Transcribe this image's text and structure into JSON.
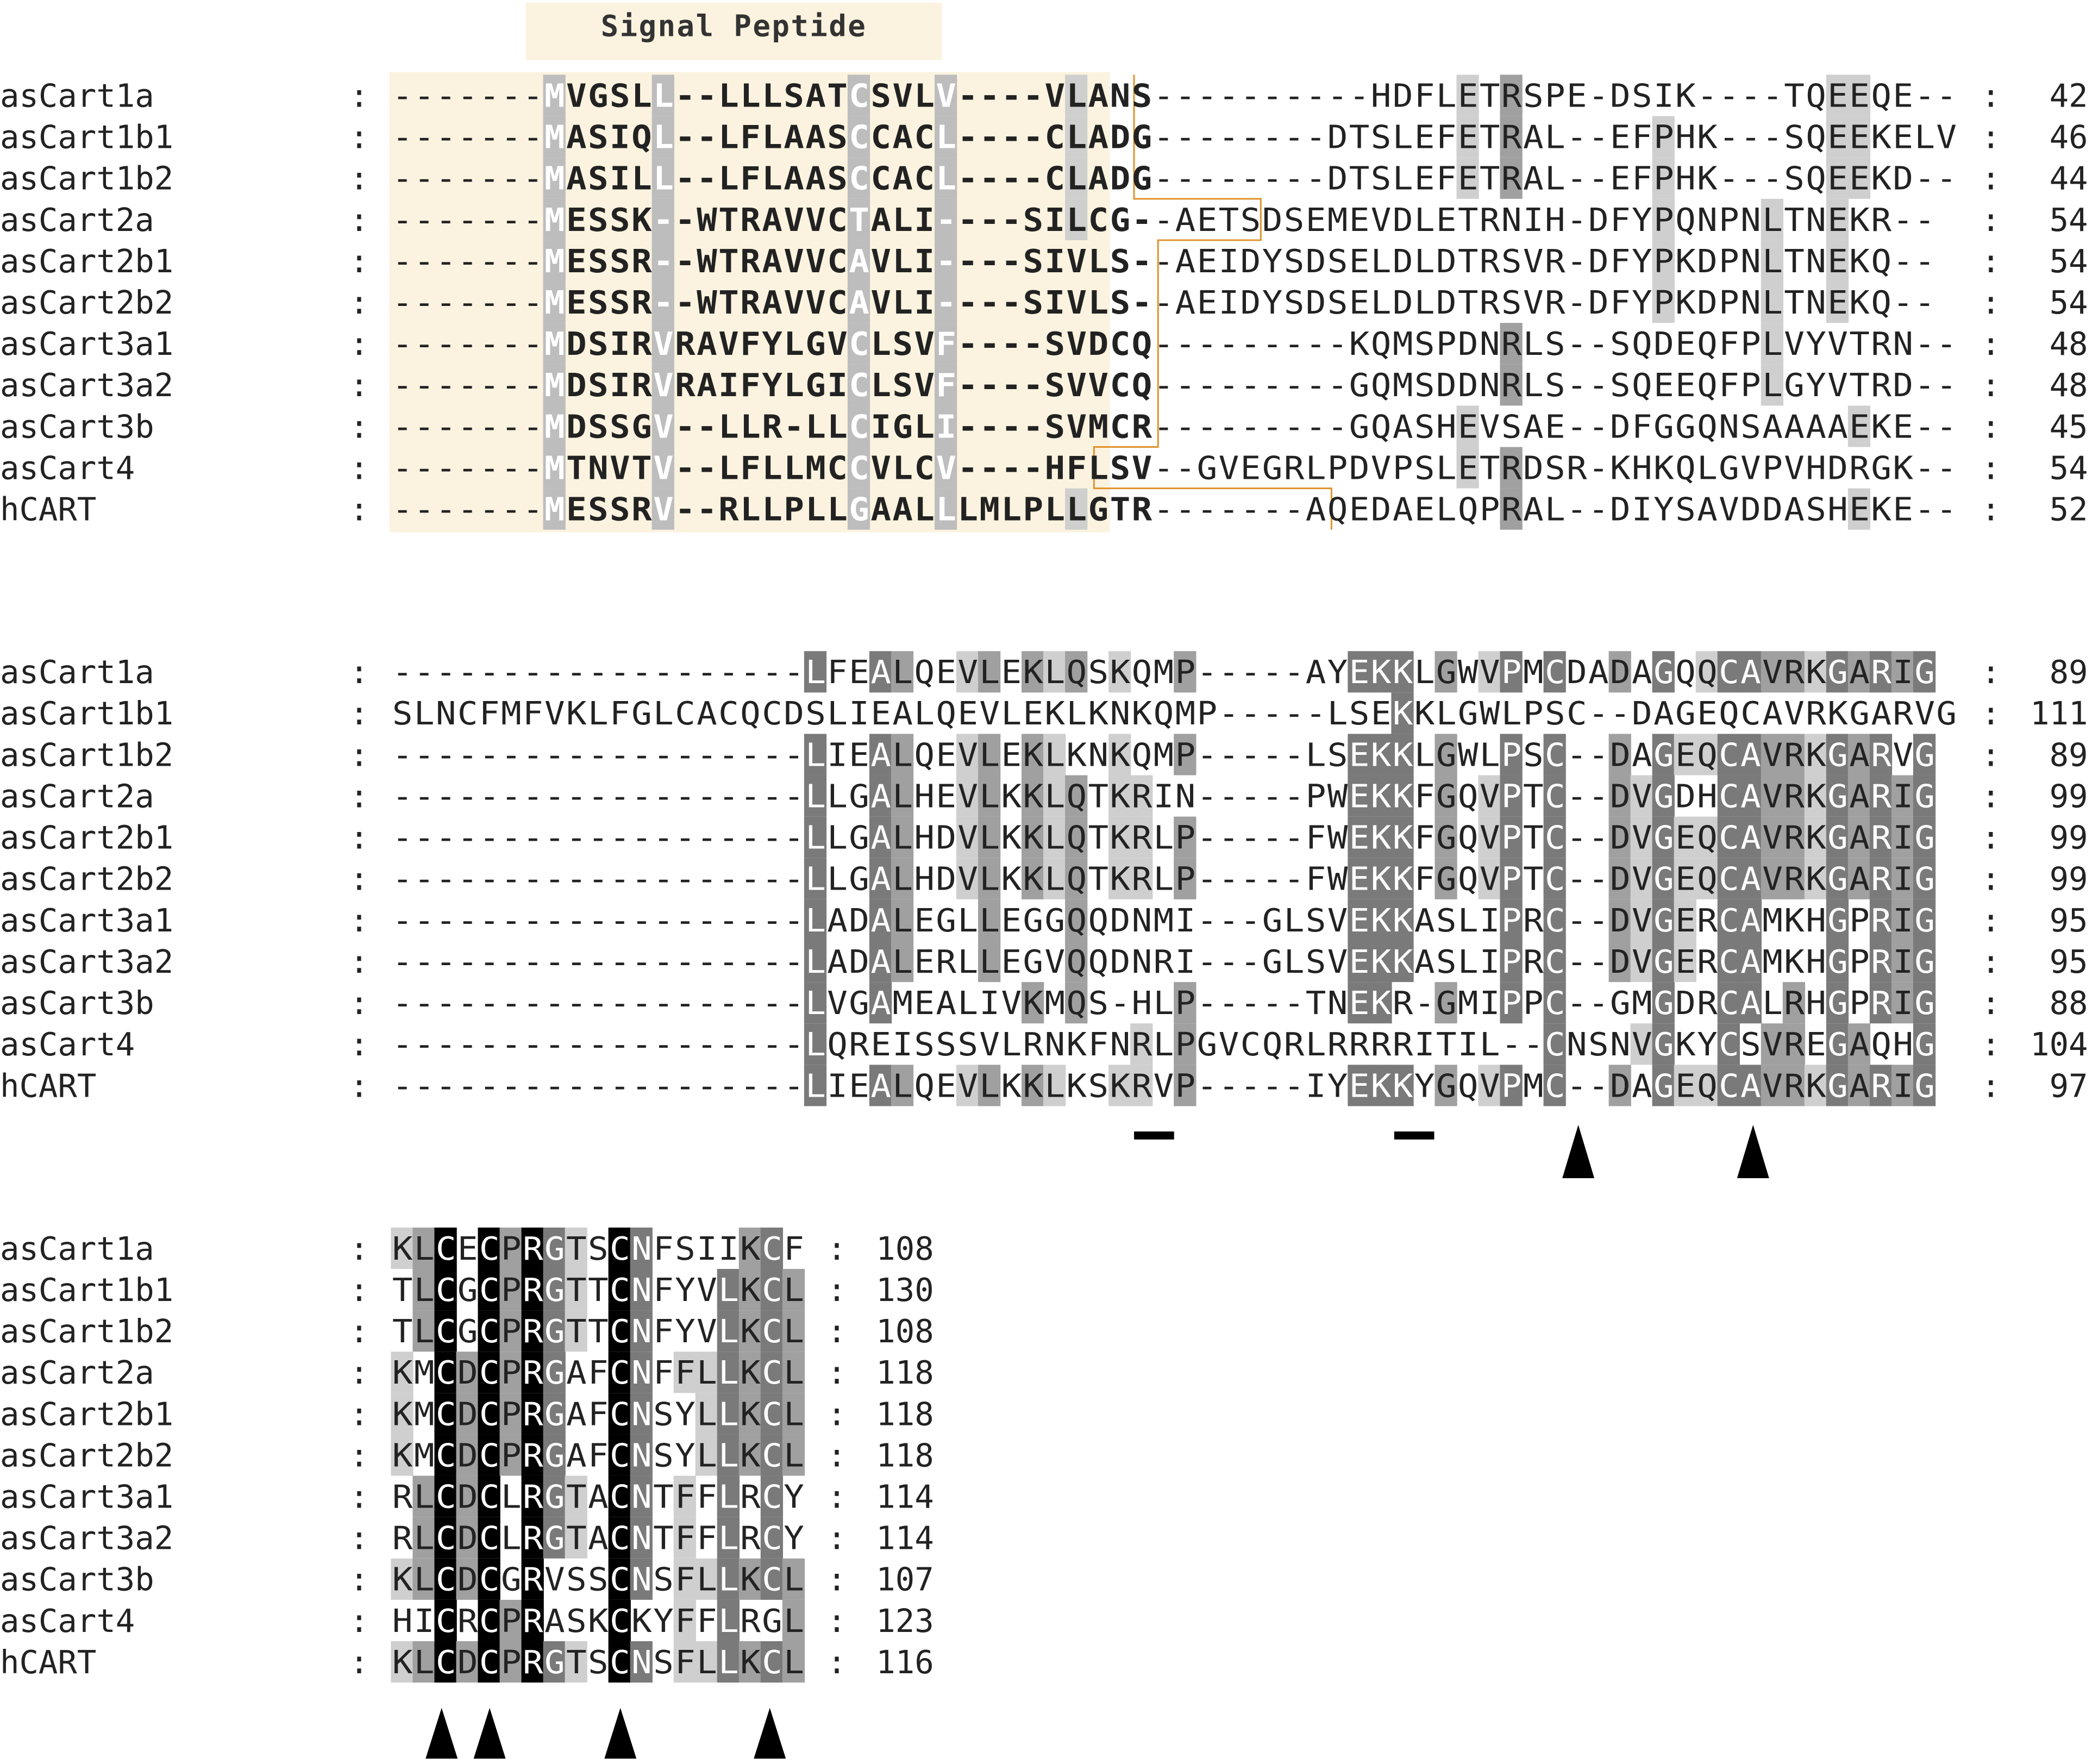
{
  "signal_peptide_label": "Signal Peptide",
  "colors": {
    "black": "#000000",
    "dark_gray": "#7a7a7a",
    "gray": "#a0a0a0",
    "light_gray": "#cfcfcf",
    "red": "#cc0000",
    "signal_shade": "#fbf3df",
    "boundary": "#e0912a"
  },
  "blocks": [
    {
      "rows": [
        {
          "name": "asCart1a",
          "seq": "-------MVGSLL--LLLSATCSVLV----VLANS----------HDFLETRSPE-DSIK----TQEEQE--",
          "end": "42",
          "bold": [
            7,
            26
          ],
          "signal": [
            0,
            29
          ],
          "red": [],
          "hl": [
            [
              7,
              "g"
            ],
            [
              12,
              "g"
            ],
            [
              21,
              "g"
            ],
            [
              25,
              "g"
            ],
            [
              29,
              "l"
            ],
            [
              33,
              "l"
            ],
            [
              45,
              "g"
            ],
            [
              46,
              "g"
            ],
            [
              47,
              "g"
            ]
          ]
        },
        {
          "name": "asCart1b1",
          "seq": "-------MASIQL--LFLAASCCACL----CLADG--------DTSLEFETRAL--EFPHK---SQEEKELV",
          "end": "46",
          "bold": [
            7,
            26
          ],
          "signal": [
            0,
            29
          ],
          "red": [],
          "hl": [
            [
              7,
              "g"
            ],
            [
              12,
              "g"
            ],
            [
              21,
              "g"
            ],
            [
              25,
              "g"
            ],
            [
              29,
              "l"
            ],
            [
              33,
              "l"
            ],
            [
              45,
              "g"
            ],
            [
              46,
              "g"
            ],
            [
              47,
              "g"
            ]
          ]
        },
        {
          "name": "asCart1b2",
          "seq": "-------MASILL--LFLAASCCACL----CLADG--------DTSLEFETRAL--EFPHK---SQEEKD--",
          "end": "44",
          "bold": [
            7,
            26
          ],
          "signal": [
            0,
            29
          ],
          "red": [],
          "hl": [
            [
              7,
              "g"
            ],
            [
              12,
              "g"
            ],
            [
              21,
              "g"
            ],
            [
              25,
              "g"
            ],
            [
              29,
              "l"
            ],
            [
              33,
              "l"
            ],
            [
              45,
              "g"
            ],
            [
              46,
              "g"
            ],
            [
              47,
              "g"
            ]
          ]
        },
        {
          "name": "asCart2a",
          "seq": "-------MESSK--WTRAVVCTALI----SILCG--AETSDSEMEVDLETRNIH-DFYPQNPNLTNEKR--",
          "end": "54",
          "bold": [
            7,
            26
          ],
          "signal": [
            0,
            29
          ],
          "red": [],
          "hl": [
            [
              7,
              "g"
            ],
            [
              12,
              "g"
            ],
            [
              21,
              "g"
            ],
            [
              25,
              "g"
            ],
            [
              29,
              "l"
            ],
            [
              33,
              "l"
            ],
            [
              45,
              "g"
            ],
            [
              46,
              "g"
            ],
            [
              47,
              "g"
            ]
          ]
        },
        {
          "name": "asCart2b1",
          "seq": "-------MESSR--WTRAVVCAVLI----SIVLS--AEIDYSDSELDLDTRSVR-DFYPKDPNLTNEKQ--",
          "end": "54",
          "bold": [
            7,
            26
          ],
          "signal": [
            0,
            29
          ],
          "red": [],
          "hl": [
            [
              7,
              "g"
            ],
            [
              12,
              "g"
            ],
            [
              21,
              "g"
            ],
            [
              25,
              "g"
            ],
            [
              29,
              "l"
            ],
            [
              33,
              "l"
            ],
            [
              45,
              "g"
            ],
            [
              46,
              "g"
            ],
            [
              47,
              "g"
            ]
          ]
        },
        {
          "name": "asCart2b2",
          "seq": "-------MESSR--WTRAVVCAVLI----SIVLS--AEIDYSDSELDLDTRSVR-DFYPKDPNLTNEKQ--",
          "end": "54",
          "bold": [
            7,
            26
          ],
          "signal": [
            0,
            29
          ],
          "red": [],
          "hl": [
            [
              7,
              "g"
            ],
            [
              12,
              "g"
            ],
            [
              21,
              "g"
            ],
            [
              25,
              "g"
            ],
            [
              29,
              "l"
            ],
            [
              33,
              "l"
            ],
            [
              45,
              "g"
            ],
            [
              46,
              "g"
            ],
            [
              47,
              "g"
            ]
          ]
        },
        {
          "name": "asCart3a1",
          "seq": "-------MDSIRVRAVFYLGVCLSVF----SVDCQ---------KQMSPDNRLS--SQDEQFPLVYVTRN--",
          "end": "48",
          "bold": [
            7,
            26
          ],
          "signal": [
            0,
            29
          ],
          "red": [],
          "hl": [
            [
              7,
              "g"
            ],
            [
              12,
              "g"
            ],
            [
              21,
              "g"
            ],
            [
              25,
              "g"
            ],
            [
              29,
              "l"
            ],
            [
              33,
              "l"
            ],
            [
              45,
              "g"
            ],
            [
              46,
              "g"
            ],
            [
              47,
              "g"
            ]
          ]
        },
        {
          "name": "asCart3a2",
          "seq": "-------MDSIRVRAIFYLGICLSVF----SVVCQ---------GQMSDDNRLS--SQEEQFPLGYVTRD--",
          "end": "48",
          "bold": [
            7,
            26
          ],
          "signal": [
            0,
            29
          ],
          "red": [],
          "hl": [
            [
              7,
              "g"
            ],
            [
              12,
              "g"
            ],
            [
              21,
              "g"
            ],
            [
              25,
              "g"
            ],
            [
              29,
              "l"
            ],
            [
              33,
              "l"
            ],
            [
              45,
              "g"
            ],
            [
              46,
              "g"
            ],
            [
              47,
              "g"
            ]
          ]
        },
        {
          "name": "asCart3b",
          "seq": "-------MDSSGV--LLR-LLCIGLI----SVMCR---------GQASHEVSAE--DFGGQNSAAAAEKE--",
          "end": "45",
          "bold": [
            7,
            26
          ],
          "signal": [
            0,
            29
          ],
          "red": [],
          "hl": [
            [
              7,
              "g"
            ],
            [
              12,
              "g"
            ],
            [
              21,
              "g"
            ],
            [
              25,
              "g"
            ],
            [
              29,
              "l"
            ],
            [
              33,
              "l"
            ],
            [
              45,
              "g"
            ],
            [
              46,
              "g"
            ],
            [
              47,
              "g"
            ]
          ]
        },
        {
          "name": "asCart4",
          "seq": "-------MTNVTV--LFLLMCCVLCV----HFLSV--GVEGRLPDVPSLETRDSR-KHKQLGVPVHDRGK--",
          "end": "54",
          "bold": [
            7,
            26
          ],
          "signal": [
            0,
            29
          ],
          "red": [],
          "hl": [
            [
              7,
              "g"
            ],
            [
              12,
              "g"
            ],
            [
              21,
              "g"
            ],
            [
              25,
              "g"
            ],
            [
              29,
              "l"
            ],
            [
              33,
              "l"
            ],
            [
              45,
              "g"
            ],
            [
              46,
              "g"
            ],
            [
              47,
              "g"
            ]
          ]
        },
        {
          "name": "hCART",
          "seq": "-------MESSRV--RLLPLLGAALLLMLPLLGTR-------AQEDAELQPRAL--DIYSAVDDASHEKE--",
          "end": "52",
          "bold": [
            7,
            26
          ],
          "signal": [
            0,
            29
          ],
          "red": [],
          "hl": [
            [
              7,
              "g"
            ],
            [
              12,
              "g"
            ],
            [
              21,
              "g"
            ],
            [
              25,
              "g"
            ],
            [
              29,
              "l"
            ],
            [
              33,
              "l"
            ],
            [
              45,
              "g"
            ],
            [
              46,
              "g"
            ],
            [
              47,
              "g"
            ]
          ]
        }
      ],
      "marks": []
    },
    {
      "rows": [
        {
          "name": "asCart1a",
          "seq": "-------------------LFEALQEVLEKLQSKQMP-----AYEKKLGWVPMCDADAGQQCAVRKGARIG",
          "end": "89",
          "red": [],
          "hl": []
        },
        {
          "name": "asCart1b1",
          "seq": "SLNCFMFVKLFGLCACQCDSLIEALQEVLEKLKNKQMP-----LSEKKLGWLPSC--DAGEQCAVRKGARVG",
          "end": "111",
          "red": [],
          "hl": []
        },
        {
          "name": "asCart1b2",
          "seq": "-------------------LIEALQEVLEKLKNKQMP-----LSEKKLGWLPSC--DAGEQCAVRKGARVG",
          "end": "89",
          "red": [],
          "hl": []
        },
        {
          "name": "asCart2a",
          "seq": "-------------------LLGALHEVLKKLQTKRIN-----PWEKKFGQVPTC--DVGDHCAVRKGARIG",
          "end": "99",
          "red": [],
          "hl": []
        },
        {
          "name": "asCart2b1",
          "seq": "-------------------LLGALHDVLKKLQTKRLP-----FWEKKFGQVPTC--DVGEQCAVRKGARIG",
          "end": "99",
          "red": [],
          "hl": []
        },
        {
          "name": "asCart2b2",
          "seq": "-------------------LLGALHDVLKKLQTKRLP-----FWEKKFGQVPTC--DVGEQCAVRKGARIG",
          "end": "99",
          "red": [],
          "hl": []
        },
        {
          "name": "asCart3a1",
          "seq": "-------------------LADALEGLLEGGQQDNMI---GLSVEKKASLIPRC--DVGERCAMKHGPRIG",
          "end": "95",
          "red": [],
          "hl": []
        },
        {
          "name": "asCart3a2",
          "seq": "-------------------LADALERLLEGVQQDNRI---GLSVEKKASLIPRC--DVGERCAMKHGPRIG",
          "end": "95",
          "red": [],
          "hl": []
        },
        {
          "name": "asCart3b",
          "seq": "-------------------LVGAMEALIVKMQS-HLP-----TNEKR-GMIPPC--GMGDRCALRHGPRIG",
          "end": "88",
          "red": [],
          "hl": []
        },
        {
          "name": "asCart4",
          "seq": "-------------------LQREISSSVLRNKFNRLPGVCQRLRRRRITIL--CNSNVGKYCSVREGAQHG",
          "end": "104",
          "red": [],
          "hl": []
        },
        {
          "name": "hCART",
          "seq": "-------------------LIEALQEVLKKLKSKRVP-----IYEKKYGQVPMC--DAGEQCAVRKGARIG",
          "end": "97",
          "red": [],
          "hl": []
        }
      ],
      "marks": []
    },
    {
      "rows": [
        {
          "name": "asCart1a",
          "seq": "KLCECPRGTSCNFSIIKCF",
          "end": "108",
          "red": [],
          "hl": []
        },
        {
          "name": "asCart1b1",
          "seq": "TLCGCPRGTTCNFYVLKCL",
          "end": "130",
          "red": [],
          "hl": []
        },
        {
          "name": "asCart1b2",
          "seq": "TLCGCPRGTTCNFYVLKCL",
          "end": "108",
          "red": [],
          "hl": []
        },
        {
          "name": "asCart2a",
          "seq": "KMCDCPRGAFCNFFLLKCL",
          "end": "118",
          "red": [],
          "hl": []
        },
        {
          "name": "asCart2b1",
          "seq": "KMCDCPRGAFCNSYLLKCL",
          "end": "118",
          "red": [],
          "hl": []
        },
        {
          "name": "asCart2b2",
          "seq": "KMCDCPRGAFCNSYLLKCL",
          "end": "118",
          "red": [],
          "hl": []
        },
        {
          "name": "asCart3a1",
          "seq": "RLCDCLRGTACNTFFLRCY",
          "end": "114",
          "red": [],
          "hl": []
        },
        {
          "name": "asCart3a2",
          "seq": "RLCDCLRGTACNTFFLRCY",
          "end": "114",
          "red": [],
          "hl": []
        },
        {
          "name": "asCart3b",
          "seq": "KLCDCGRVSSCNSFLLKCL",
          "end": "107",
          "red": [],
          "hl": []
        },
        {
          "name": "asCart4",
          "seq": "HICRCPRASKCKYFFLRGL",
          "end": "123",
          "red": [],
          "hl": []
        },
        {
          "name": "hCART",
          "seq": "KLCDCPRGTSCNSFLLKCL",
          "end": "116",
          "red": [],
          "hl": []
        }
      ],
      "marks": []
    }
  ]
}
